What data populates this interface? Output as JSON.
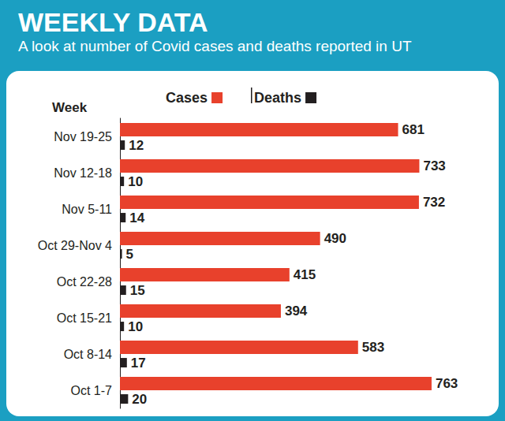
{
  "chart_data": {
    "type": "bar",
    "title": "WEEKLY DATA",
    "subtitle": "A look at number of Covid cases and deaths reported in UT",
    "y_label": "Week",
    "orientation": "horizontal",
    "categories": [
      "Nov 19-25",
      "Nov 12-18",
      "Nov 5-11",
      "Oct 29-Nov 4",
      "Oct 22-28",
      "Oct 15-21",
      "Oct 8-14",
      "Oct 1-7"
    ],
    "series": [
      {
        "name": "Cases",
        "color": "#e8412c",
        "values": [
          681,
          733,
          732,
          490,
          415,
          394,
          583,
          763
        ]
      },
      {
        "name": "Deaths",
        "color": "#231f20",
        "values": [
          12,
          10,
          14,
          5,
          15,
          10,
          17,
          20
        ]
      }
    ],
    "xlim": [
      0,
      850
    ],
    "data_labels": true,
    "tick_labels": "y",
    "grid": false,
    "legend": "top"
  }
}
